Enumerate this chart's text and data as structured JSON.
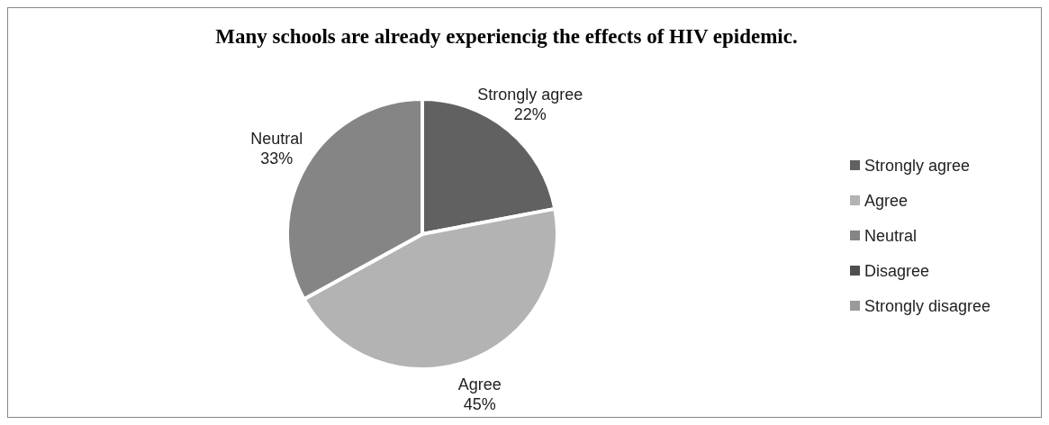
{
  "chart_data": {
    "type": "pie",
    "title": "Many schools are already experiencig the effects of HIV epidemic.",
    "categories": [
      "Strongly agree",
      "Agree",
      "Neutral",
      "Disagree",
      "Strongly disagree"
    ],
    "values": [
      22,
      45,
      33,
      0,
      0
    ],
    "colors": [
      "#616161",
      "#b3b3b3",
      "#858585",
      "#4f4f4f",
      "#9a9a9a"
    ],
    "value_labels": [
      "22%",
      "45%",
      "33%",
      null,
      null
    ],
    "legend": "right"
  }
}
